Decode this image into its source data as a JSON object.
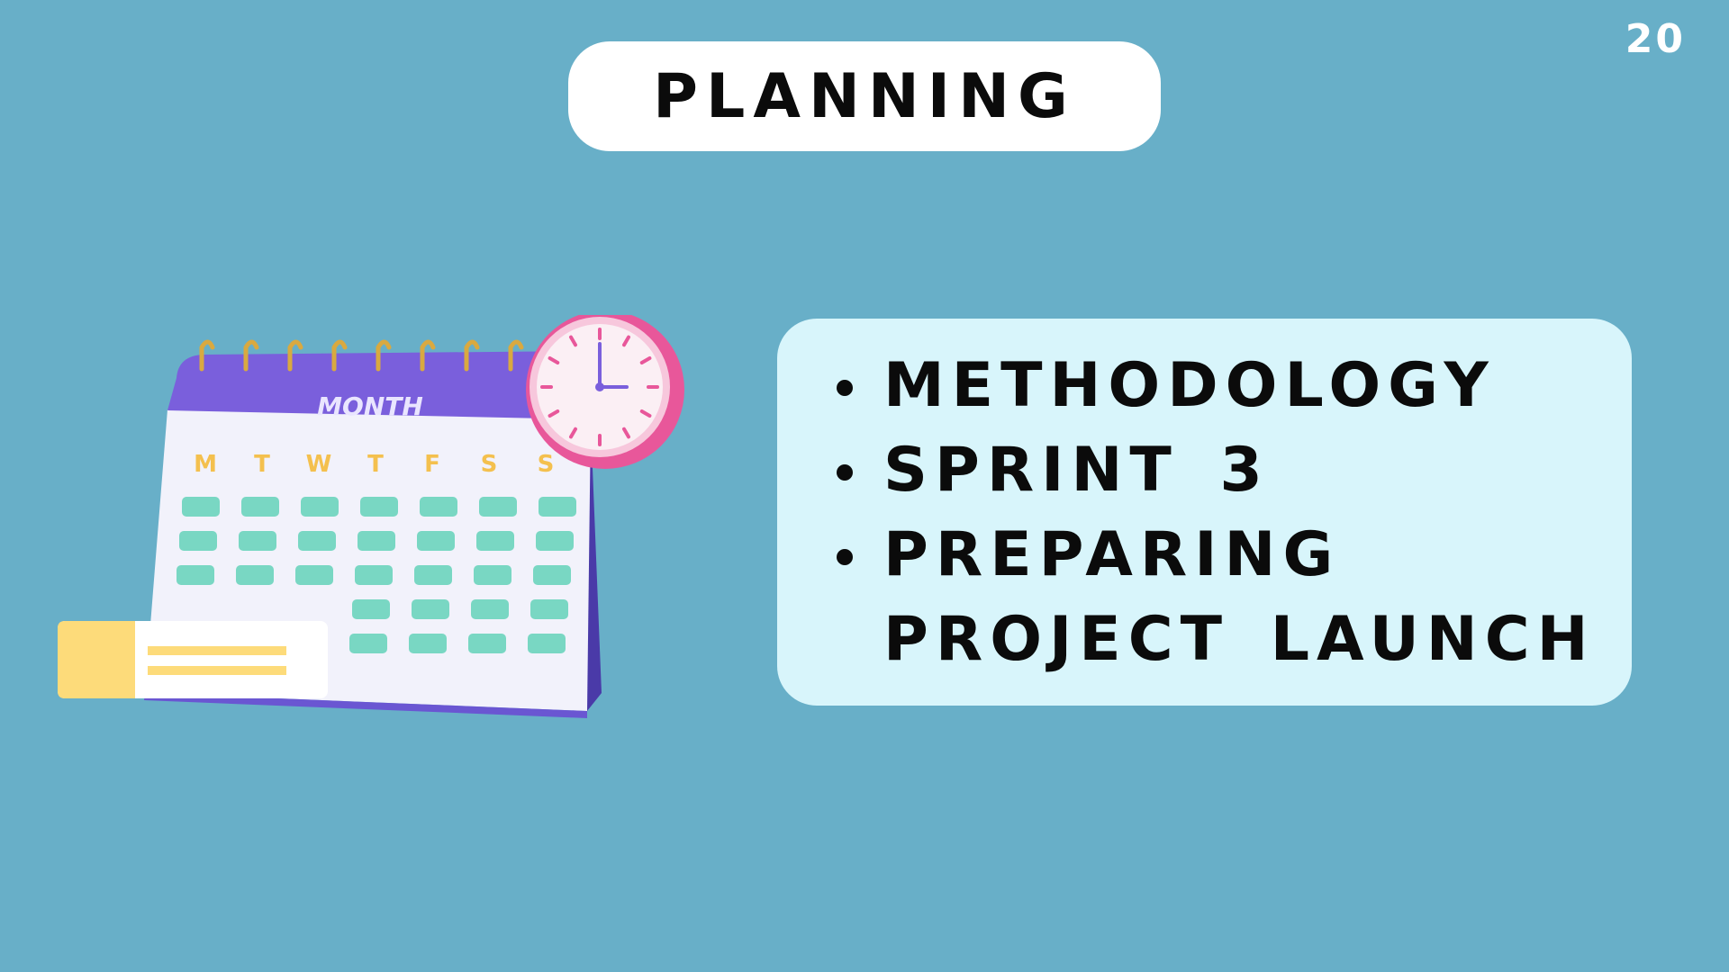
{
  "slide": {
    "number": "20",
    "title": "PLANNING"
  },
  "bullets": [
    "METHODOLOGY",
    "SPRINT 3",
    "PREPARING PROJECT LAUNCH"
  ],
  "calendar": {
    "month_label": "MONTH",
    "days": [
      "M",
      "T",
      "W",
      "T",
      "F",
      "S",
      "S"
    ]
  },
  "colors": {
    "background": "#68afc8",
    "panel": "#d8f5fb",
    "calendar_header": "#7a5fdc",
    "calendar_cells": "#79d7c3",
    "day_labels": "#f4c04e",
    "clock": "#e8579a",
    "note_card": "#fddb7a"
  },
  "icons": [
    "calendar-icon",
    "clock-icon",
    "note-card-icon"
  ]
}
